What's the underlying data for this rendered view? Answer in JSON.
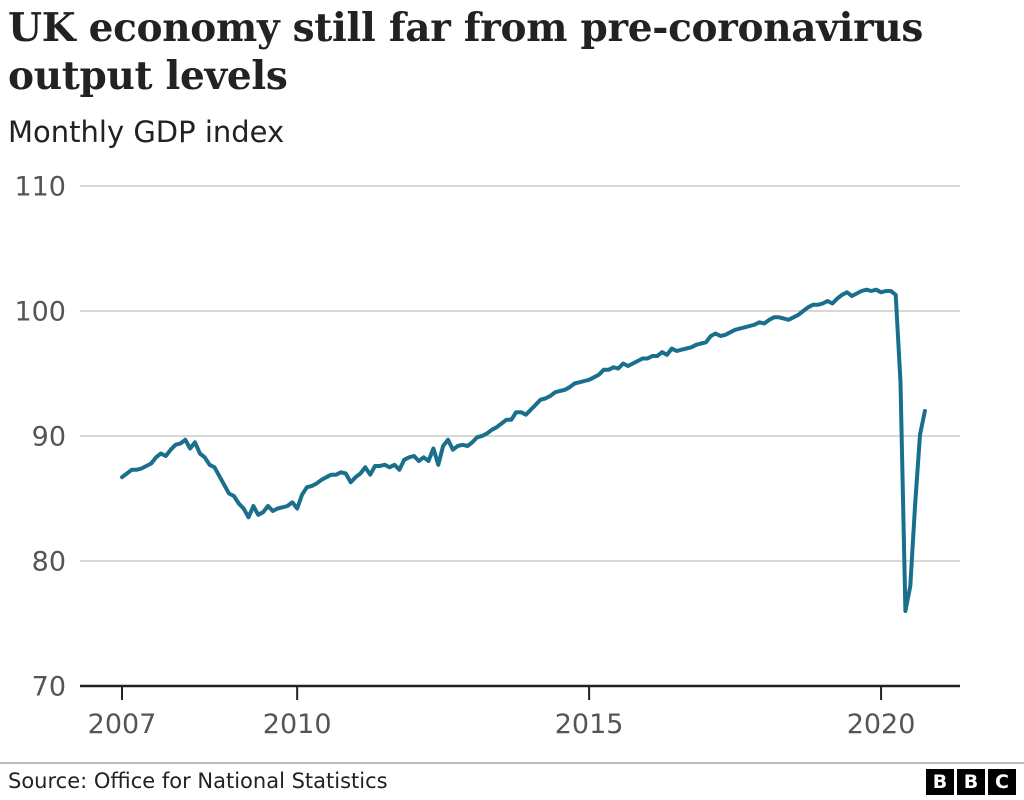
{
  "title": "UK economy still far from pre-coronavirus output levels",
  "subtitle": "Monthly GDP index",
  "source": "Source: Office for National Statistics",
  "logo": {
    "letters": [
      "B",
      "B",
      "C"
    ]
  },
  "colors": {
    "line": "#1a6f8d",
    "grid": "#cccccc",
    "axis": "#222222",
    "tick_text": "#555555"
  },
  "chart_data": {
    "type": "line",
    "title": "UK economy still far from pre-coronavirus output levels",
    "subtitle": "Monthly GDP index",
    "xlabel": "",
    "ylabel": "",
    "ylim": [
      70,
      110
    ],
    "xlim": [
      "2007-01",
      "2020-09"
    ],
    "yticks": [
      70,
      80,
      90,
      100,
      110
    ],
    "xticks": [
      {
        "label": "2007",
        "date": "2007-01"
      },
      {
        "label": "2010",
        "date": "2010-01"
      },
      {
        "label": "2015",
        "date": "2015-01"
      },
      {
        "label": "2020",
        "date": "2020-01"
      }
    ],
    "grid": true,
    "legend": "none",
    "series": [
      {
        "start": "2007-01",
        "frequency": "monthly",
        "values": [
          86.7,
          87.0,
          87.3,
          87.3,
          87.4,
          87.6,
          87.8,
          88.3,
          88.6,
          88.4,
          88.9,
          89.3,
          89.4,
          89.7,
          89.0,
          89.5,
          88.6,
          88.3,
          87.7,
          87.5,
          86.8,
          86.1,
          85.4,
          85.2,
          84.6,
          84.2,
          83.5,
          84.4,
          83.7,
          83.9,
          84.4,
          84.0,
          84.2,
          84.3,
          84.4,
          84.7,
          84.2,
          85.3,
          85.9,
          86.0,
          86.2,
          86.5,
          86.7,
          86.9,
          86.9,
          87.1,
          87.0,
          86.3,
          86.7,
          87.0,
          87.5,
          86.9,
          87.6,
          87.6,
          87.7,
          87.5,
          87.7,
          87.3,
          88.1,
          88.3,
          88.4,
          88.0,
          88.3,
          88.0,
          89.0,
          87.7,
          89.2,
          89.7,
          88.9,
          89.2,
          89.3,
          89.2,
          89.5,
          89.9,
          90.0,
          90.2,
          90.5,
          90.7,
          91.0,
          91.3,
          91.3,
          91.9,
          91.9,
          91.7,
          92.1,
          92.5,
          92.9,
          93.0,
          93.2,
          93.5,
          93.6,
          93.7,
          93.9,
          94.2,
          94.3,
          94.4,
          94.5,
          94.7,
          94.9,
          95.3,
          95.3,
          95.5,
          95.4,
          95.8,
          95.6,
          95.8,
          96.0,
          96.2,
          96.2,
          96.4,
          96.4,
          96.7,
          96.5,
          97.0,
          96.8,
          96.9,
          97.0,
          97.1,
          97.3,
          97.4,
          97.5,
          98.0,
          98.2,
          98.0,
          98.1,
          98.3,
          98.5,
          98.6,
          98.7,
          98.8,
          98.9,
          99.1,
          99.0,
          99.3,
          99.5,
          99.5,
          99.4,
          99.3,
          99.5,
          99.7,
          100.0,
          100.3,
          100.5,
          100.5,
          100.6,
          100.8,
          100.6,
          101.0,
          101.3,
          101.5,
          101.2,
          101.4,
          101.6,
          101.7,
          101.6,
          101.7,
          101.5,
          101.6,
          101.6,
          101.3,
          94.3,
          76.0,
          78.0,
          84.5,
          90.1,
          92.0
        ]
      }
    ]
  }
}
